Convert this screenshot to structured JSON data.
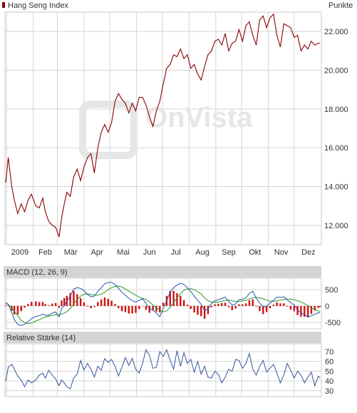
{
  "colors": {
    "price_line": "#8b0000",
    "macd_line": "#2255aa",
    "signal_line": "#2c9a2c",
    "histogram": "#d01010",
    "rsi_line": "#33559a",
    "grid": "#d4d4d4",
    "panel_header": "#d4d4d4",
    "watermark": "#e6e6e6"
  },
  "watermark": "OnVista",
  "chart_data": [
    {
      "type": "line",
      "title": "Hang Seng Index",
      "unit_label": "Punkte",
      "x": [
        "2008-12-31",
        "2009-01-03",
        "2009-01-07",
        "2009-01-10",
        "2009-01-14",
        "2009-01-18",
        "2009-01-22",
        "2009-01-26",
        "2009-01-30",
        "2009-02-04",
        "2009-02-08",
        "2009-02-12",
        "2009-02-15",
        "2009-02-19",
        "2009-02-23",
        "2009-02-27",
        "2009-03-03",
        "2009-03-06",
        "2009-03-09",
        "2009-03-12",
        "2009-03-16",
        "2009-03-20",
        "2009-03-24",
        "2009-03-28",
        "2009-04-01",
        "2009-04-05",
        "2009-04-09",
        "2009-04-13",
        "2009-04-17",
        "2009-04-21",
        "2009-04-25",
        "2009-04-29",
        "2009-05-03",
        "2009-05-07",
        "2009-05-11",
        "2009-05-15",
        "2009-05-19",
        "2009-05-23",
        "2009-05-27",
        "2009-05-31",
        "2009-06-04",
        "2009-06-08",
        "2009-06-12",
        "2009-06-16",
        "2009-06-20",
        "2009-06-24",
        "2009-06-28",
        "2009-07-02",
        "2009-07-06",
        "2009-07-10",
        "2009-07-14",
        "2009-07-18",
        "2009-07-22",
        "2009-07-26",
        "2009-07-30",
        "2009-08-03",
        "2009-08-07",
        "2009-08-11",
        "2009-08-15",
        "2009-08-19",
        "2009-08-23",
        "2009-08-27",
        "2009-08-31",
        "2009-09-04",
        "2009-09-08",
        "2009-09-12",
        "2009-09-16",
        "2009-09-20",
        "2009-09-24",
        "2009-09-28",
        "2009-10-02",
        "2009-10-06",
        "2009-10-10",
        "2009-10-14",
        "2009-10-18",
        "2009-10-22",
        "2009-10-26",
        "2009-10-30",
        "2009-11-03",
        "2009-11-07",
        "2009-11-11",
        "2009-11-15",
        "2009-11-19",
        "2009-11-23",
        "2009-11-27",
        "2009-12-01",
        "2009-12-05",
        "2009-12-09",
        "2009-12-13",
        "2009-12-17",
        "2009-12-21",
        "2009-12-25",
        "2009-12-29",
        "2009-12-31"
      ],
      "values": [
        14200,
        15500,
        14000,
        13300,
        12600,
        13100,
        12700,
        13300,
        13600,
        13000,
        12900,
        13400,
        12700,
        12200,
        12000,
        11900,
        11400,
        12400,
        13100,
        13700,
        13500,
        14500,
        14900,
        14300,
        15000,
        15500,
        15700,
        14700,
        16000,
        16800,
        17200,
        16800,
        17300,
        18400,
        18800,
        18500,
        18300,
        17800,
        18300,
        17900,
        18600,
        18600,
        18200,
        17600,
        17100,
        17900,
        18400,
        19300,
        20100,
        20300,
        20800,
        20700,
        21100,
        20600,
        20800,
        20100,
        20300,
        19800,
        19500,
        20200,
        20800,
        21000,
        21500,
        21600,
        21300,
        21900,
        21000,
        21400,
        21500,
        22100,
        21500,
        22300,
        22500,
        21800,
        21300,
        22600,
        22800,
        22200,
        22700,
        22900,
        21800,
        21200,
        22400,
        22300,
        22200,
        21700,
        21800,
        21000,
        21300,
        21100,
        21500,
        21300,
        21400,
        21400
      ],
      "x_ticks": [
        "2009",
        "Feb",
        "Mär",
        "Apr",
        "Mai",
        "Jun",
        "Jul",
        "Aug",
        "Sep",
        "Okt",
        "Nov",
        "Dez"
      ],
      "y_ticks": [
        "12.000",
        "14.000",
        "16.000",
        "18.000",
        "20.000",
        "22.000"
      ],
      "ylim": [
        11000,
        23000
      ],
      "grid": true
    },
    {
      "type": "line",
      "title": "MACD (12, 26, 9)",
      "series": [
        {
          "values": [
            100,
            50,
            -200,
            -420,
            -560,
            -600,
            -560,
            -480,
            -390,
            -320,
            -300,
            -250,
            -280,
            -290,
            -220,
            -180,
            -330,
            -80,
            20,
            140,
            310,
            520,
            560,
            540,
            470,
            350,
            280,
            300,
            450,
            560,
            680,
            720,
            720,
            660,
            540,
            420,
            330,
            230,
            160,
            120,
            170,
            220,
            80,
            -90,
            -110,
            -220,
            -330,
            -80,
            160,
            420,
            560,
            640,
            690,
            660,
            560,
            440,
            300,
            170,
            50,
            -140,
            -90,
            80,
            160,
            190,
            230,
            270,
            140,
            30,
            60,
            190,
            200,
            250,
            380,
            450,
            240,
            90,
            -30,
            -10,
            80,
            180,
            270,
            260,
            280,
            190,
            100,
            30,
            -120,
            -210,
            -270,
            -340,
            -300,
            -250,
            -210,
            -200
          ]
        },
        {
          "values": [
            80,
            40,
            -50,
            -160,
            -300,
            -440,
            -510,
            -540,
            -520,
            -460,
            -420,
            -370,
            -340,
            -310,
            -290,
            -270,
            -270,
            -250,
            -220,
            -170,
            -80,
            60,
            200,
            300,
            360,
            370,
            350,
            330,
            330,
            360,
            420,
            500,
            560,
            600,
            610,
            580,
            520,
            460,
            390,
            330,
            270,
            230,
            200,
            120,
            30,
            -50,
            -130,
            -180,
            -150,
            -40,
            100,
            250,
            380,
            480,
            520,
            530,
            500,
            440,
            360,
            250,
            160,
            120,
            110,
            120,
            140,
            170,
            180,
            160,
            140,
            140,
            150,
            170,
            210,
            250,
            260,
            250,
            220,
            180,
            150,
            140,
            160,
            180,
            200,
            210,
            210,
            190,
            160,
            120,
            70,
            10,
            -60,
            -110,
            -150,
            -170
          ]
        }
      ],
      "histogram": [
        20,
        10,
        -150,
        -260,
        -260,
        -160,
        -50,
        60,
        130,
        140,
        120,
        120,
        60,
        20,
        70,
        90,
        -60,
        170,
        240,
        310,
        390,
        460,
        360,
        240,
        110,
        -20,
        -70,
        -30,
        120,
        200,
        260,
        220,
        160,
        60,
        -70,
        -160,
        -190,
        -230,
        -230,
        -210,
        -100,
        -10,
        -120,
        -210,
        -140,
        -170,
        -200,
        100,
        310,
        460,
        460,
        390,
        310,
        180,
        40,
        -90,
        -200,
        -270,
        -310,
        -390,
        -250,
        -40,
        50,
        70,
        90,
        100,
        -40,
        -130,
        -80,
        50,
        50,
        80,
        170,
        200,
        -20,
        -160,
        -250,
        -190,
        -70,
        40,
        110,
        80,
        80,
        -20,
        -110,
        -160,
        -280,
        -330,
        -330,
        -350,
        -240,
        -140,
        -60,
        -30
      ],
      "y_ticks": [
        "500",
        "0",
        "-500"
      ],
      "ylim": [
        -700,
        850
      ],
      "grid": true
    },
    {
      "type": "line",
      "title": "Relative Stärke (14)",
      "values": [
        40,
        54,
        57,
        52,
        45,
        41,
        34,
        41,
        38,
        41,
        46,
        48,
        43,
        51,
        46,
        42,
        35,
        41,
        38,
        34,
        32,
        43,
        47,
        61,
        51,
        58,
        52,
        44,
        55,
        51,
        63,
        59,
        62,
        55,
        45,
        54,
        64,
        56,
        63,
        52,
        48,
        58,
        72,
        66,
        53,
        54,
        70,
        65,
        72,
        61,
        52,
        71,
        55,
        69,
        58,
        62,
        49,
        60,
        47,
        55,
        44,
        43,
        50,
        47,
        38,
        44,
        52,
        50,
        62,
        61,
        53,
        58,
        68,
        52,
        46,
        55,
        61,
        49,
        53,
        57,
        48,
        38,
        46,
        58,
        51,
        43,
        50,
        46,
        38,
        44,
        49,
        35,
        45,
        43
      ],
      "y_ticks": [
        "70",
        "60",
        "50",
        "40",
        "30"
      ],
      "ylim": [
        24,
        78
      ],
      "grid": true
    }
  ]
}
